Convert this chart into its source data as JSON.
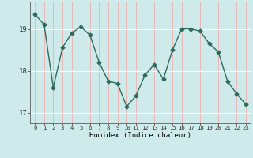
{
  "x": [
    0,
    1,
    2,
    3,
    4,
    5,
    6,
    7,
    8,
    9,
    10,
    11,
    12,
    13,
    14,
    15,
    16,
    17,
    18,
    19,
    20,
    21,
    22,
    23
  ],
  "y": [
    19.35,
    19.1,
    17.6,
    18.55,
    18.9,
    19.05,
    18.85,
    18.2,
    17.75,
    17.7,
    17.15,
    17.4,
    17.9,
    18.15,
    17.8,
    18.5,
    19.0,
    19.0,
    18.95,
    18.65,
    18.45,
    17.75,
    17.45,
    17.2
  ],
  "xlabel": "Humidex (Indice chaleur)",
  "ylabel": "",
  "xlim": [
    -0.5,
    23.5
  ],
  "ylim": [
    16.75,
    19.65
  ],
  "yticks": [
    17,
    18,
    19
  ],
  "xticks": [
    0,
    1,
    2,
    3,
    4,
    5,
    6,
    7,
    8,
    9,
    10,
    11,
    12,
    13,
    14,
    15,
    16,
    17,
    18,
    19,
    20,
    21,
    22,
    23
  ],
  "line_color": "#2e6b5e",
  "marker": "D",
  "marker_size": 2.5,
  "bg_color": "#ceeaea",
  "grid_hcolor": "#ffffff",
  "grid_vcolor": "#e8b8b8"
}
